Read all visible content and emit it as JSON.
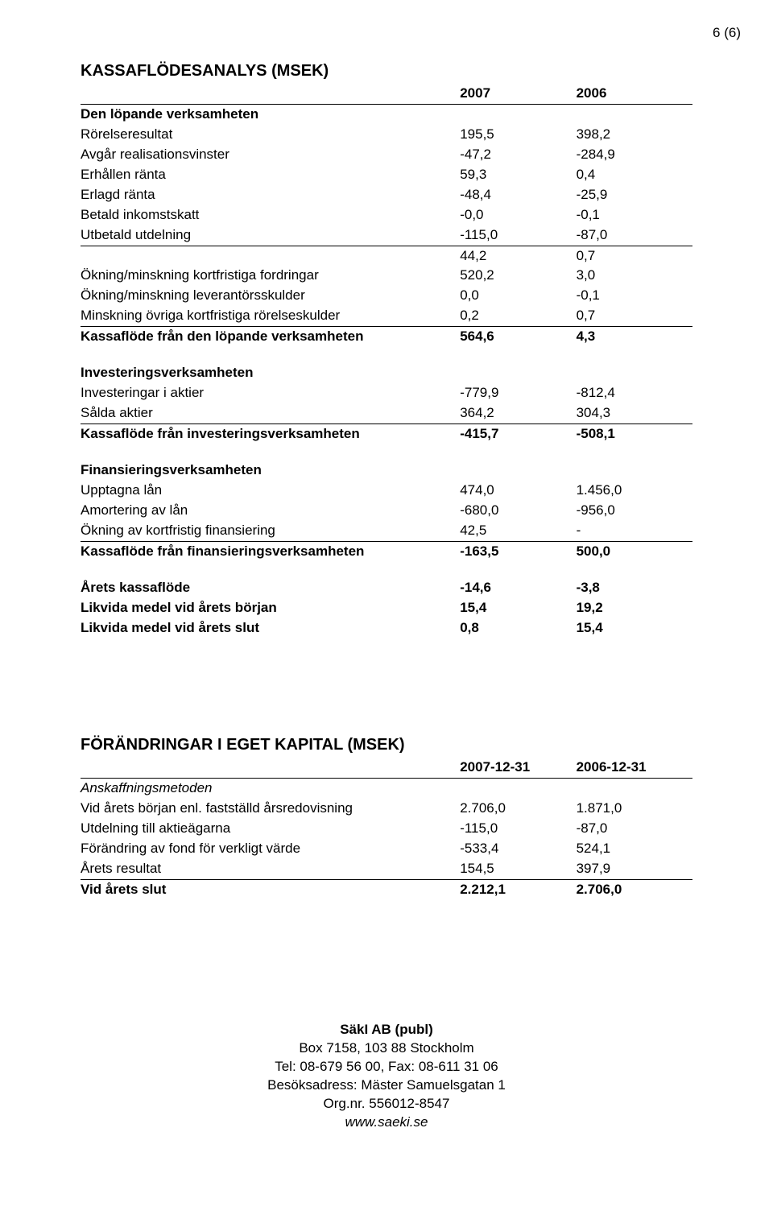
{
  "page_number": "6 (6)",
  "section1": {
    "title": "KASSAFLÖDESANALYS (MSEK)",
    "col1": "2007",
    "col2": "2006",
    "groups": [
      {
        "header": "Den löpande verksamheten",
        "rows": [
          {
            "label": "Rörelseresultat",
            "v1": "195,5",
            "v2": "398,2"
          },
          {
            "label": "Avgår realisationsvinster",
            "v1": "-47,2",
            "v2": "-284,9"
          },
          {
            "label": "Erhållen ränta",
            "v1": "59,3",
            "v2": "0,4"
          },
          {
            "label": "Erlagd ränta",
            "v1": "-48,4",
            "v2": "-25,9"
          },
          {
            "label": "Betald inkomstskatt",
            "v1": "-0,0",
            "v2": "-0,1"
          },
          {
            "label": "Utbetald utdelning",
            "v1": "-115,0",
            "v2": "-87,0",
            "underline": true
          },
          {
            "label": "",
            "v1": "44,2",
            "v2": "0,7"
          },
          {
            "label": "Ökning/minskning kortfristiga fordringar",
            "v1": "520,2",
            "v2": "3,0"
          },
          {
            "label": "Ökning/minskning leverantörsskulder",
            "v1": "0,0",
            "v2": "-0,1"
          },
          {
            "label": "Minskning övriga kortfristiga rörelseskulder",
            "v1": "0,2",
            "v2": "0,7",
            "underline": true
          }
        ],
        "total": {
          "label": "Kassaflöde från den löpande verksamheten",
          "v1": "564,6",
          "v2": "4,3"
        }
      },
      {
        "header": "Investeringsverksamheten",
        "rows": [
          {
            "label": "Investeringar i aktier",
            "v1": "-779,9",
            "v2": "-812,4"
          },
          {
            "label": "Sålda aktier",
            "v1": "364,2",
            "v2": "304,3",
            "underline": true
          }
        ],
        "total": {
          "label": "Kassaflöde från investeringsverksamheten",
          "v1": "-415,7",
          "v2": "-508,1"
        }
      },
      {
        "header": "Finansieringsverksamheten",
        "rows": [
          {
            "label": "Upptagna lån",
            "v1": "474,0",
            "v2": "1.456,0"
          },
          {
            "label": "Amortering av lån",
            "v1": "-680,0",
            "v2": "-956,0"
          },
          {
            "label": "Ökning av kortfristig finansiering",
            "v1": "42,5",
            "v2": "-",
            "underline": true
          }
        ],
        "total": {
          "label": "Kassaflöde från finansieringsverksamheten",
          "v1": "-163,5",
          "v2": "500,0"
        }
      }
    ],
    "summary": [
      {
        "label": "Årets kassaflöde",
        "v1": "-14,6",
        "v2": "-3,8",
        "bold": true
      },
      {
        "label": "Likvida medel vid årets början",
        "v1": "15,4",
        "v2": "19,2",
        "bold": true
      },
      {
        "label": "Likvida medel vid årets slut",
        "v1": "0,8",
        "v2": "15,4",
        "bold": true
      }
    ]
  },
  "section2": {
    "title": "FÖRÄNDRINGAR I EGET KAPITAL (MSEK)",
    "col1": "2007-12-31",
    "col2": "2006-12-31",
    "subheader": "Anskaffningsmetoden",
    "rows": [
      {
        "label": "Vid årets början enl. fastställd årsredovisning",
        "v1": "2.706,0",
        "v2": "1.871,0"
      },
      {
        "label": "Utdelning till aktieägarna",
        "v1": "-115,0",
        "v2": "-87,0"
      },
      {
        "label": "Förändring av fond för verkligt värde",
        "v1": "-533,4",
        "v2": "524,1"
      },
      {
        "label": "Årets resultat",
        "v1": "154,5",
        "v2": "397,9",
        "underline": true
      }
    ],
    "total": {
      "label": "Vid årets slut",
      "v1": "2.212,1",
      "v2": "2.706,0"
    }
  },
  "footer": {
    "company": "SäkI AB (publ)",
    "address": "Box 7158, 103 88 Stockholm",
    "tel": "Tel: 08-679 56 00, Fax: 08-611 31 06",
    "visit": "Besöksadress: Mäster Samuelsgatan 1",
    "org": "Org.nr. 556012-8547",
    "web": "www.saeki.se"
  }
}
